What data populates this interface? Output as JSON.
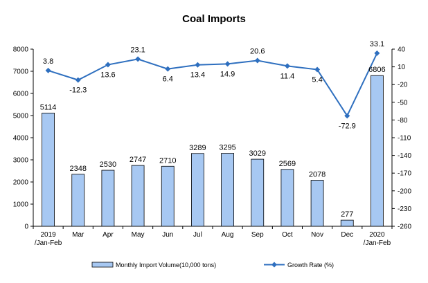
{
  "chart_data": {
    "type": "bar",
    "title": "Coal Imports",
    "categories": [
      [
        "2019",
        "/Jan-Feb"
      ],
      [
        "Mar"
      ],
      [
        "Apr"
      ],
      [
        "May"
      ],
      [
        "Jun"
      ],
      [
        "Jul"
      ],
      [
        "Aug"
      ],
      [
        "Sep"
      ],
      [
        "Oct"
      ],
      [
        "Nov"
      ],
      [
        "Dec"
      ],
      [
        "2020",
        "/Jan-Feb"
      ]
    ],
    "series": [
      {
        "name": "Monthly Import Volume(10,000 tons)",
        "kind": "bar",
        "axis": "left",
        "values": [
          5114,
          2348,
          2530,
          2747,
          2710,
          3289,
          3295,
          3029,
          2569,
          2078,
          277,
          6806
        ],
        "color": "#a7c8f2",
        "border": "#000000"
      },
      {
        "name": "Growth Rate (%)",
        "kind": "line",
        "axis": "right",
        "values": [
          3.8,
          -12.3,
          13.6,
          23.1,
          6.4,
          13.4,
          14.9,
          20.6,
          11.4,
          5.4,
          -72.9,
          33.1
        ],
        "color": "#2e6fbf"
      }
    ],
    "y_left": {
      "min": 0,
      "max": 8000,
      "ticks": [
        0,
        1000,
        2000,
        3000,
        4000,
        5000,
        6000,
        7000,
        8000
      ]
    },
    "y_right": {
      "min": -260,
      "max": 40,
      "ticks": [
        40,
        10,
        -20,
        -50,
        -80,
        -110,
        -140,
        -170,
        -200,
        -230,
        -260
      ]
    },
    "grid": false,
    "legend_position": "bottom"
  }
}
